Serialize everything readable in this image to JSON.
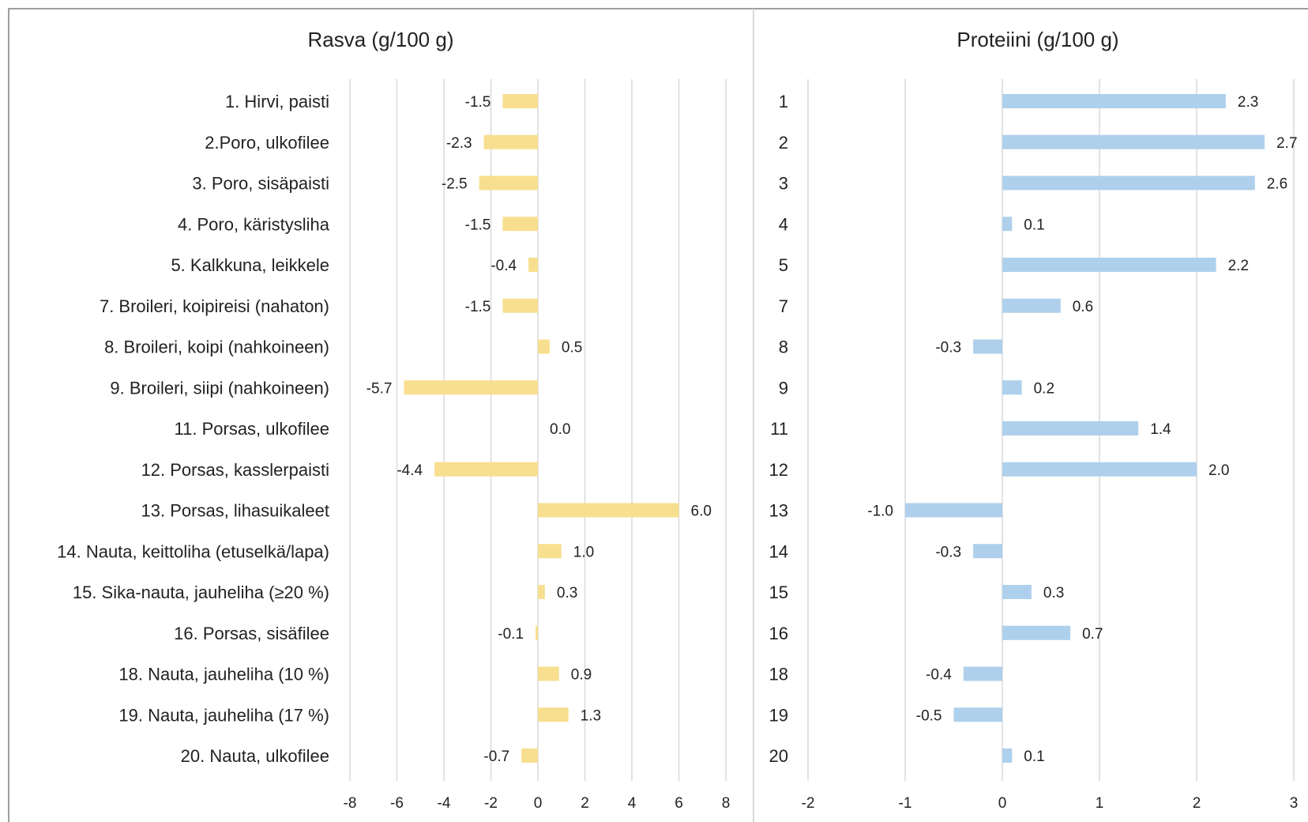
{
  "colors": {
    "fat_bar": "#f8df8f",
    "protein_bar": "#aed0ec",
    "gridline": "#d9d9d9",
    "frame": "#7f7f7f",
    "divider": "#d9d9d9",
    "text": "#222222"
  },
  "chart_data": [
    {
      "type": "bar",
      "orientation": "horizontal",
      "title": "Rasva (g/100 g)",
      "categories": [
        "1. Hirvi, paisti",
        "2.Poro, ulkofilee",
        "3. Poro, sisäpaisti",
        "4. Poro, käristysliha",
        "5. Kalkkuna, leikkele",
        "7. Broileri, koipireisi (nahaton)",
        "8. Broileri, koipi (nahkoineen)",
        "9. Broileri, siipi (nahkoineen)",
        "11. Porsas, ulkofilee",
        "12. Porsas, kasslerpaisti",
        "13. Porsas, lihasuikaleet",
        "14. Nauta, keittoliha (etuselkä/lapa)",
        "15. Sika-nauta, jauheliha (≥20 %)",
        "16. Porsas, sisäfilee",
        "18. Nauta, jauheliha (10 %)",
        "19. Nauta, jauheliha (17 %)",
        "20. Nauta, ulkofilee"
      ],
      "values": [
        -1.5,
        -2.3,
        -2.5,
        -1.5,
        -0.4,
        -1.5,
        0.5,
        -5.7,
        0.0,
        -4.4,
        6.0,
        1.0,
        0.3,
        -0.1,
        0.9,
        1.3,
        -0.7
      ],
      "data_labels": [
        "-1.5",
        "-2.3",
        "-2.5",
        "-1.5",
        "-0.4",
        "-1.5",
        "0.5",
        "-5.7",
        "0.0",
        "-4.4",
        "6.0",
        "1.0",
        "0.3",
        "-0.1",
        "0.9",
        "1.3",
        "-0.7"
      ],
      "xlim": [
        -8,
        8
      ],
      "xticks": [
        -8,
        -6,
        -4,
        -2,
        0,
        2,
        4,
        6,
        8
      ],
      "tick_labels": [
        "-8",
        "-6",
        "-4",
        "-2",
        "0",
        "2",
        "4",
        "6",
        "8"
      ],
      "grid": true,
      "legend": "none"
    },
    {
      "type": "bar",
      "orientation": "horizontal",
      "title": "Proteiini (g/100 g)",
      "categories": [
        "1",
        "2",
        "3",
        "4",
        "5",
        "7",
        "8",
        "9",
        "11",
        "12",
        "13",
        "14",
        "15",
        "16",
        "18",
        "19",
        "20"
      ],
      "values": [
        2.3,
        2.7,
        2.6,
        0.1,
        2.2,
        0.6,
        -0.3,
        0.2,
        1.4,
        2.0,
        -1.0,
        -0.3,
        0.3,
        0.7,
        -0.4,
        -0.5,
        0.1
      ],
      "data_labels": [
        "2.3",
        "2.7",
        "2.6",
        "0.1",
        "2.2",
        "0.6",
        "-0.3",
        "0.2",
        "1.4",
        "2.0",
        "-1.0",
        "-0.3",
        "0.3",
        "0.7",
        "-0.4",
        "-0.5",
        "0.1"
      ],
      "xlim": [
        -2,
        3
      ],
      "xticks": [
        -2,
        -1,
        0,
        1,
        2,
        3
      ],
      "tick_labels": [
        "-2",
        "-1",
        "0",
        "1",
        "2",
        "3"
      ],
      "grid": true,
      "legend": "none"
    }
  ]
}
